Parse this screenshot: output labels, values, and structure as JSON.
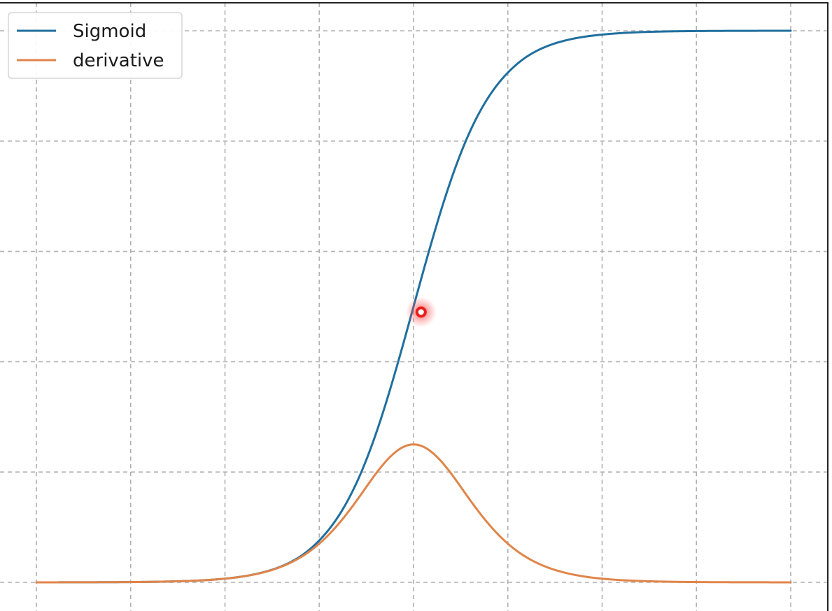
{
  "chart_data": {
    "type": "line",
    "title": "",
    "xlabel": "",
    "ylabel": "",
    "xlim": [
      -10,
      10
    ],
    "ylim": [
      0,
      1
    ],
    "x_gridlines": [
      -10,
      -7.5,
      -5,
      -2.5,
      0,
      2.5,
      5,
      7.5,
      10
    ],
    "y_gridlines": [
      0,
      0.2,
      0.4,
      0.6,
      0.8,
      1.0
    ],
    "grid": true,
    "legend_position": "top-left",
    "series": [
      {
        "name": "Sigmoid",
        "color": "#1f6f9e",
        "x": [
          -10,
          -9,
          -8,
          -7,
          -6,
          -5,
          -4,
          -3,
          -2.5,
          -2,
          -1.5,
          -1,
          -0.5,
          0,
          0.5,
          1,
          1.5,
          2,
          2.5,
          3,
          4,
          5,
          6,
          7,
          8,
          9,
          10
        ],
        "y": [
          5e-05,
          0.00012,
          0.00034,
          0.00091,
          0.00247,
          0.0067,
          0.018,
          0.047,
          0.076,
          0.119,
          0.182,
          0.269,
          0.378,
          0.5,
          0.622,
          0.731,
          0.818,
          0.881,
          0.924,
          0.953,
          0.982,
          0.993,
          0.9975,
          0.9991,
          0.9997,
          0.9999,
          1.0
        ]
      },
      {
        "name": "derivative",
        "color": "#e0854a",
        "x": [
          -10,
          -9,
          -8,
          -7,
          -6,
          -5,
          -4,
          -3,
          -2.5,
          -2,
          -1.5,
          -1,
          -0.5,
          0,
          0.5,
          1,
          1.5,
          2,
          2.5,
          3,
          4,
          5,
          6,
          7,
          8,
          9,
          10
        ],
        "y": [
          5e-05,
          0.00012,
          0.00034,
          0.00091,
          0.00247,
          0.0066,
          0.0177,
          0.0452,
          0.0701,
          0.105,
          0.149,
          0.197,
          0.235,
          0.25,
          0.235,
          0.197,
          0.149,
          0.105,
          0.0701,
          0.0452,
          0.0177,
          0.0066,
          0.00247,
          0.00091,
          0.00034,
          0.00012,
          5e-05
        ]
      }
    ],
    "annotation": {
      "type": "cursor-marker",
      "color": "#e81e1e",
      "x": 0.2,
      "y": 0.49
    }
  }
}
